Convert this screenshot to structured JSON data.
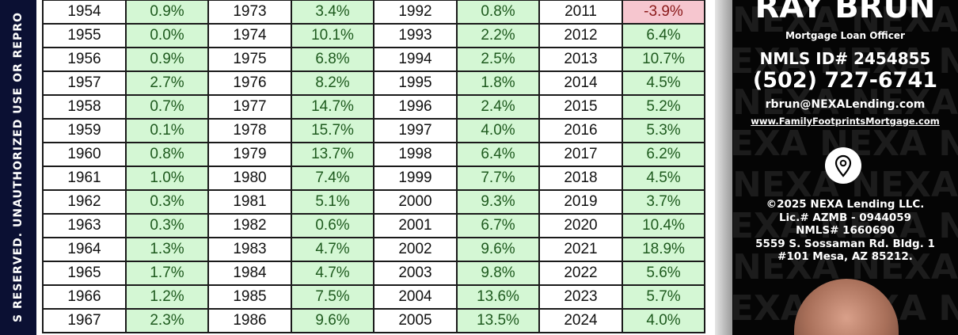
{
  "side_strip": {
    "text": "S RESERVED. UNAUTHORIZED USE OR REPRO",
    "color": "#0b1033"
  },
  "table": {
    "colors": {
      "positive": "#d4f7d4",
      "negative": "#f6c6cf"
    },
    "rows": [
      [
        [
          "1954",
          "0.9%"
        ],
        [
          "1973",
          "3.4%"
        ],
        [
          "1992",
          "0.8%"
        ],
        [
          "2011",
          "-3.9%"
        ]
      ],
      [
        [
          "1955",
          "0.0%"
        ],
        [
          "1974",
          "10.1%"
        ],
        [
          "1993",
          "2.2%"
        ],
        [
          "2012",
          "6.4%"
        ]
      ],
      [
        [
          "1956",
          "0.9%"
        ],
        [
          "1975",
          "6.8%"
        ],
        [
          "1994",
          "2.5%"
        ],
        [
          "2013",
          "10.7%"
        ]
      ],
      [
        [
          "1957",
          "2.7%"
        ],
        [
          "1976",
          "8.2%"
        ],
        [
          "1995",
          "1.8%"
        ],
        [
          "2014",
          "4.5%"
        ]
      ],
      [
        [
          "1958",
          "0.7%"
        ],
        [
          "1977",
          "14.7%"
        ],
        [
          "1996",
          "2.4%"
        ],
        [
          "2015",
          "5.2%"
        ]
      ],
      [
        [
          "1959",
          "0.1%"
        ],
        [
          "1978",
          "15.7%"
        ],
        [
          "1997",
          "4.0%"
        ],
        [
          "2016",
          "5.3%"
        ]
      ],
      [
        [
          "1960",
          "0.8%"
        ],
        [
          "1979",
          "13.7%"
        ],
        [
          "1998",
          "6.4%"
        ],
        [
          "2017",
          "6.2%"
        ]
      ],
      [
        [
          "1961",
          "1.0%"
        ],
        [
          "1980",
          "7.4%"
        ],
        [
          "1999",
          "7.7%"
        ],
        [
          "2018",
          "4.5%"
        ]
      ],
      [
        [
          "1962",
          "0.3%"
        ],
        [
          "1981",
          "5.1%"
        ],
        [
          "2000",
          "9.3%"
        ],
        [
          "2019",
          "3.7%"
        ]
      ],
      [
        [
          "1963",
          "0.3%"
        ],
        [
          "1982",
          "0.6%"
        ],
        [
          "2001",
          "6.7%"
        ],
        [
          "2020",
          "10.4%"
        ]
      ],
      [
        [
          "1964",
          "1.3%"
        ],
        [
          "1983",
          "4.7%"
        ],
        [
          "2002",
          "9.6%"
        ],
        [
          "2021",
          "18.9%"
        ]
      ],
      [
        [
          "1965",
          "1.7%"
        ],
        [
          "1984",
          "4.7%"
        ],
        [
          "2003",
          "9.8%"
        ],
        [
          "2022",
          "5.6%"
        ]
      ],
      [
        [
          "1966",
          "1.2%"
        ],
        [
          "1985",
          "7.5%"
        ],
        [
          "2004",
          "13.6%"
        ],
        [
          "2023",
          "5.7%"
        ]
      ],
      [
        [
          "1967",
          "2.3%"
        ],
        [
          "1986",
          "9.6%"
        ],
        [
          "2005",
          "13.5%"
        ],
        [
          "2024",
          "4.0%"
        ]
      ]
    ]
  },
  "contact": {
    "name": "RAY BRUN",
    "title": "Mortgage Loan Officer",
    "nmls_id": "NMLS ID# 2454855",
    "phone": "(502) 727-6741",
    "email": "rbrun@NEXALending.com",
    "website": "www.FamilyFootprintsMortgage.com",
    "icon": "location-pin-icon",
    "legal": [
      "©2025 NEXA Lending LLC.",
      "Lic.# AZMB - 0944059",
      "NMLS# 1660690",
      "5559 S. Sossaman Rd. Bldg. 1",
      "#101 Mesa, AZ 85212."
    ],
    "watermark": "NEXA Lending"
  }
}
